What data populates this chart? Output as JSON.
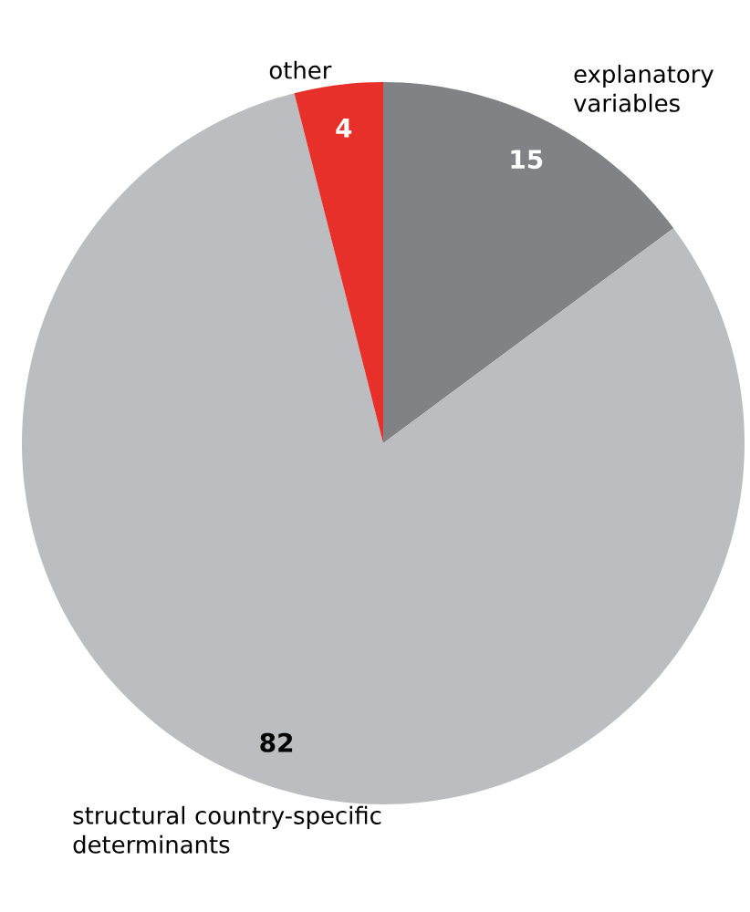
{
  "chart_data": {
    "type": "pie",
    "categories": [
      "explanatory variables",
      "structural country-specific determinants",
      "other"
    ],
    "values": [
      15,
      82,
      4
    ],
    "colors": [
      "#808285",
      "#bcbdc0",
      "#e8302a"
    ],
    "data_labels": true
  }
}
